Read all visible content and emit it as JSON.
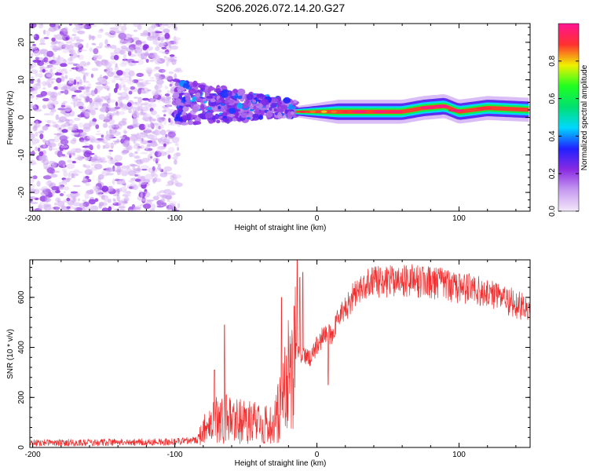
{
  "chart_data": [
    {
      "type": "heatmap",
      "title": "S206.2026.072.14.20.G27",
      "xlabel": "Height of straight line (km)",
      "ylabel": "Frequency (Hz)",
      "xlim": [
        -202,
        150
      ],
      "ylim": [
        -25,
        25
      ],
      "xticks": [
        -200,
        -100,
        0,
        100
      ],
      "yticks": [
        -20,
        -10,
        0,
        10,
        20
      ],
      "colorbar": {
        "label": "Normalized spectral amplitude",
        "range": [
          0,
          1
        ],
        "ticks": [
          0.0,
          0.2,
          0.4,
          0.6,
          0.8
        ],
        "tick_labels": [
          "0.0",
          "0.2",
          "0.4",
          "0.6",
          "0.8"
        ],
        "colors": [
          "#f4e8fa",
          "#c79cf0",
          "#8a2be2",
          "#2020ff",
          "#00d8ff",
          "#00e070",
          "#20ff20",
          "#f0f000",
          "#ff3030",
          "#ff1493"
        ]
      },
      "regions": [
        {
          "name": "noise",
          "x_range": [
            -202,
            -97
          ],
          "f_range": [
            -25,
            25
          ],
          "amplitude": [
            0.02,
            0.18
          ]
        },
        {
          "name": "transition",
          "x_range": [
            -100,
            -15
          ],
          "center_f": [
            4,
            -2
          ],
          "spread_f": [
            6,
            2
          ],
          "amplitude": [
            0.15,
            0.4
          ]
        },
        {
          "name": "signal",
          "x_range": [
            -15,
            150
          ],
          "center_f": 1.5,
          "amplitude": [
            0.7,
            0.98
          ]
        }
      ],
      "ridge": [
        {
          "x": -15,
          "f": 1.5
        },
        {
          "x": 0,
          "f": 1.5
        },
        {
          "x": 20,
          "f": 1.5
        },
        {
          "x": 60,
          "f": 1.5
        },
        {
          "x": 75,
          "f": 2.5
        },
        {
          "x": 90,
          "f": 3
        },
        {
          "x": 100,
          "f": 1.5
        },
        {
          "x": 120,
          "f": 2.5
        },
        {
          "x": 150,
          "f": 2
        }
      ]
    },
    {
      "type": "line",
      "xlabel": "Height of straight line (km)",
      "ylabel": "SNR (10 * v/v)",
      "xlim": [
        -202,
        150
      ],
      "ylim": [
        0,
        750
      ],
      "xticks": [
        -200,
        -100,
        0,
        100
      ],
      "yticks": [
        0,
        200,
        400,
        600
      ],
      "color": "#f03030",
      "envelope": [
        {
          "x": -202,
          "y": 18
        },
        {
          "x": -100,
          "y": 22
        },
        {
          "x": -85,
          "y": 30
        },
        {
          "x": -78,
          "y": 90
        },
        {
          "x": -70,
          "y": 130
        },
        {
          "x": -50,
          "y": 110
        },
        {
          "x": -30,
          "y": 100
        },
        {
          "x": -20,
          "y": 300
        },
        {
          "x": -15,
          "y": 380
        },
        {
          "x": -5,
          "y": 360
        },
        {
          "x": 5,
          "y": 450
        },
        {
          "x": 10,
          "y": 450
        },
        {
          "x": 15,
          "y": 520
        },
        {
          "x": 20,
          "y": 550
        },
        {
          "x": 30,
          "y": 640
        },
        {
          "x": 40,
          "y": 660
        },
        {
          "x": 60,
          "y": 670
        },
        {
          "x": 80,
          "y": 660
        },
        {
          "x": 100,
          "y": 640
        },
        {
          "x": 120,
          "y": 620
        },
        {
          "x": 150,
          "y": 550
        }
      ],
      "spikes": [
        {
          "x": -65,
          "y": 490
        },
        {
          "x": -72,
          "y": 310
        },
        {
          "x": -25,
          "y": 600
        },
        {
          "x": -14,
          "y": 750
        },
        {
          "x": -12,
          "y": 680
        },
        {
          "x": -10,
          "y": 700
        },
        {
          "x": 8,
          "y": 250
        }
      ]
    }
  ]
}
